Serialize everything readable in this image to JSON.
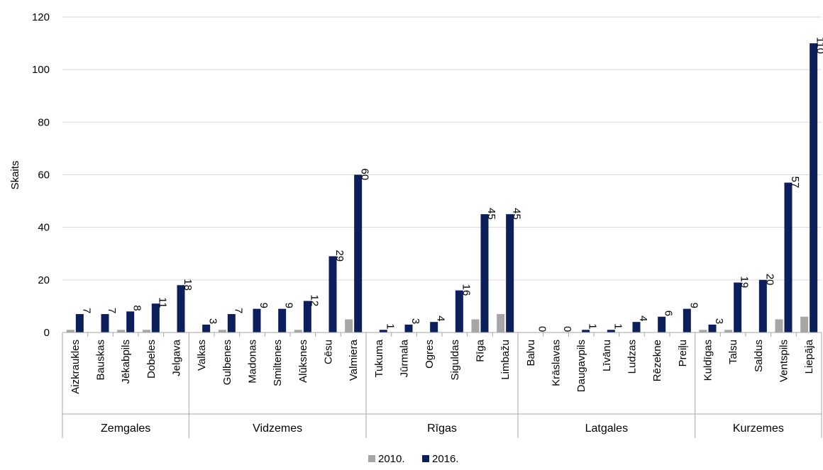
{
  "chart_data": {
    "type": "bar",
    "ylabel": "Skaits",
    "ylim": [
      0,
      120
    ],
    "yticks": [
      0,
      20,
      40,
      60,
      80,
      100,
      120
    ],
    "grid": true,
    "legend_position": "bottom-center",
    "colors": {
      "2010.": "#a6a6a6",
      "2016.": "#0c1f5c",
      "grid": "#d9d9d9",
      "axis": "#a6a6a6"
    },
    "groups": [
      {
        "name": "Zemgales",
        "categories": [
          "Aizkraukles",
          "Bauskas",
          "Jēkabpils",
          "Dobeles",
          "Jelgava"
        ]
      },
      {
        "name": "Vidzemes",
        "categories": [
          "Valkas",
          "Gulbenes",
          "Madonas",
          "Smiltenes",
          "Alūksnes",
          "Cēsu",
          "Valmiera"
        ]
      },
      {
        "name": "Rīgas",
        "categories": [
          "Tukuma",
          "Jūrmala",
          "Ogres",
          "Siguldas",
          "Rīga",
          "Limbažu"
        ]
      },
      {
        "name": "Latgales",
        "categories": [
          "Balvu",
          "Krāslavas",
          "Daugavpils",
          "Līvānu",
          "Ludzas",
          "Rēzekne",
          "Preiļu"
        ]
      },
      {
        "name": "Kurzemes",
        "categories": [
          "Kuldīgas",
          "Talsu",
          "Saldus",
          "Ventspils",
          "Liepāja"
        ]
      }
    ],
    "series": [
      {
        "name": "2010.",
        "labeled": false,
        "values": [
          1,
          0,
          1,
          1,
          0,
          0,
          1,
          0,
          0,
          1,
          0,
          5,
          0,
          0,
          0,
          0,
          5,
          7,
          0,
          0,
          0,
          0,
          0,
          0,
          0,
          1,
          1,
          0,
          5,
          6
        ]
      },
      {
        "name": "2016.",
        "labeled": true,
        "values": [
          7,
          7,
          8,
          11,
          18,
          3,
          7,
          9,
          9,
          12,
          29,
          60,
          1,
          3,
          4,
          16,
          45,
          45,
          0,
          0,
          1,
          1,
          4,
          6,
          9,
          3,
          19,
          20,
          57,
          110
        ]
      }
    ]
  }
}
